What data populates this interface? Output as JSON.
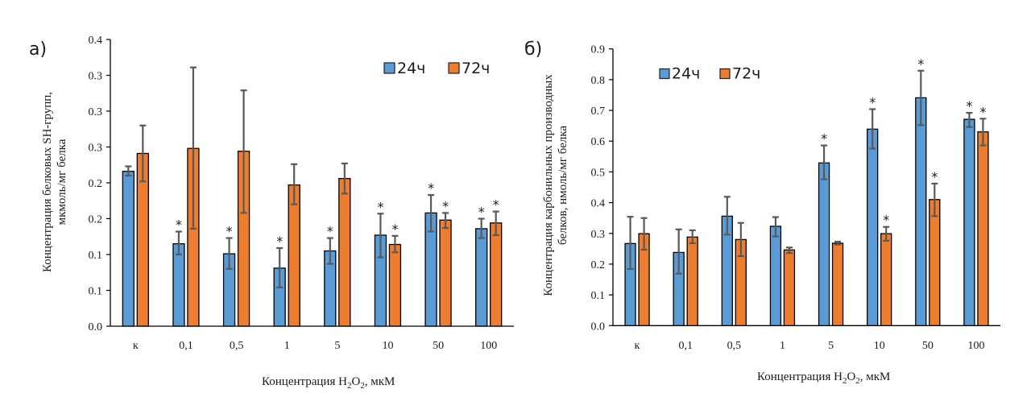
{
  "colors": {
    "series_24h": "#5b9bd5",
    "series_72h": "#ed7d31",
    "bar_outline": "#000000",
    "error_bar": "#595959",
    "axis": "#000000"
  },
  "chart_data": [
    {
      "type": "bar",
      "panel_label": "а)",
      "title": "",
      "xlabel": "Концентрация H2O2, мкМ",
      "xlabel_parts": {
        "prefix": "Концентрация H",
        "sub1": "2",
        "mid": "O",
        "sub2": "2",
        "suffix": ", мкМ"
      },
      "ylabel": "Концентрация белковых SH-групп, мкмоль/мг белка",
      "ylabel_lines": [
        "Концентрация белковых SH-групп,",
        "мкмоль/мг белка"
      ],
      "ylim": [
        0,
        0.4
      ],
      "yticks": [
        0,
        0.05,
        0.1,
        0.15,
        0.2,
        0.25,
        0.3,
        0.35,
        0.4
      ],
      "ytick_labels": [
        "0.0",
        "0.1",
        "0.1",
        "0.2",
        "0.2",
        "0.3",
        "0.3",
        "0.3",
        "0.4"
      ],
      "grid": false,
      "legend": {
        "placement": "top-right",
        "entries": [
          "24ч",
          "72ч"
        ]
      },
      "categories": [
        "к",
        "0,1",
        "0,5",
        "1",
        "5",
        "10",
        "50",
        "100"
      ],
      "series": [
        {
          "name": "24ч",
          "values": [
            0.216,
            0.115,
            0.101,
            0.081,
            0.105,
            0.127,
            0.158,
            0.136
          ],
          "err_low": [
            0.21,
            0.1,
            0.08,
            0.054,
            0.087,
            0.096,
            0.132,
            0.123
          ],
          "err_high": [
            0.223,
            0.132,
            0.123,
            0.109,
            0.123,
            0.157,
            0.183,
            0.15
          ],
          "significant": [
            false,
            true,
            true,
            true,
            true,
            true,
            true,
            true
          ]
        },
        {
          "name": "72ч",
          "values": [
            0.241,
            0.248,
            0.244,
            0.197,
            0.206,
            0.114,
            0.148,
            0.144
          ],
          "err_low": [
            0.202,
            0.136,
            0.158,
            0.17,
            0.185,
            0.103,
            0.137,
            0.127
          ],
          "err_high": [
            0.28,
            0.361,
            0.329,
            0.226,
            0.227,
            0.126,
            0.158,
            0.16
          ],
          "significant": [
            false,
            false,
            false,
            false,
            false,
            true,
            true,
            true
          ]
        }
      ],
      "annotation_symbol": "*"
    },
    {
      "type": "bar",
      "panel_label": "б)",
      "title": "",
      "xlabel": "Концентрация H2O2, мкМ",
      "xlabel_parts": {
        "prefix": "Концентрация H",
        "sub1": "2",
        "mid": "O",
        "sub2": "2",
        "suffix": ", мкМ"
      },
      "ylabel": "Концентрация карбонильных производных белков, нмоль/мг белка",
      "ylabel_lines": [
        "Концентрация карбонильных производных",
        "белков, нмоль/мг белка"
      ],
      "ylim": [
        0,
        0.9
      ],
      "yticks": [
        0,
        0.1,
        0.2,
        0.3,
        0.4,
        0.5,
        0.6,
        0.7,
        0.8,
        0.9
      ],
      "ytick_labels": [
        "0.0",
        "0.1",
        "0.2",
        "0.3",
        "0.4",
        "0.5",
        "0.6",
        "0.7",
        "0.8",
        "0.9"
      ],
      "grid": false,
      "legend": {
        "placement": "top-left",
        "entries": [
          "24ч",
          "72ч"
        ]
      },
      "categories": [
        "к",
        "0,1",
        "0,5",
        "1",
        "5",
        "10",
        "50",
        "100"
      ],
      "series": [
        {
          "name": "24ч",
          "values": [
            0.267,
            0.238,
            0.356,
            0.323,
            0.529,
            0.639,
            0.741,
            0.671
          ],
          "err_low": [
            0.184,
            0.169,
            0.296,
            0.29,
            0.476,
            0.576,
            0.652,
            0.646
          ],
          "err_high": [
            0.354,
            0.313,
            0.419,
            0.353,
            0.586,
            0.704,
            0.829,
            0.692
          ],
          "significant": [
            false,
            false,
            false,
            false,
            true,
            true,
            true,
            true
          ]
        },
        {
          "name": "72ч",
          "values": [
            0.299,
            0.288,
            0.28,
            0.246,
            0.268,
            0.299,
            0.41,
            0.63
          ],
          "err_low": [
            0.247,
            0.268,
            0.226,
            0.236,
            0.264,
            0.276,
            0.356,
            0.586
          ],
          "err_high": [
            0.35,
            0.31,
            0.334,
            0.254,
            0.273,
            0.321,
            0.462,
            0.673
          ],
          "significant": [
            false,
            false,
            false,
            false,
            false,
            true,
            true,
            true
          ]
        }
      ],
      "annotation_symbol": "*"
    }
  ]
}
